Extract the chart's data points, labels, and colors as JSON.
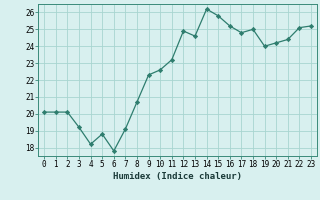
{
  "x": [
    0,
    1,
    2,
    3,
    4,
    5,
    6,
    7,
    8,
    9,
    10,
    11,
    12,
    13,
    14,
    15,
    16,
    17,
    18,
    19,
    20,
    21,
    22,
    23
  ],
  "y": [
    20.1,
    20.1,
    20.1,
    19.2,
    18.2,
    18.8,
    17.8,
    19.1,
    20.7,
    22.3,
    22.6,
    23.2,
    24.9,
    24.6,
    26.2,
    25.8,
    25.2,
    24.8,
    25.0,
    24.0,
    24.2,
    24.4,
    25.1,
    25.2
  ],
  "line_color": "#2e7d6e",
  "marker": "D",
  "marker_size": 2.2,
  "bg_color": "#d8f0ef",
  "grid_color": "#a8d5d0",
  "xlabel": "Humidex (Indice chaleur)",
  "ylim": [
    17.5,
    26.5
  ],
  "xlim": [
    -0.5,
    23.5
  ],
  "yticks": [
    18,
    19,
    20,
    21,
    22,
    23,
    24,
    25,
    26
  ],
  "xticks": [
    0,
    1,
    2,
    3,
    4,
    5,
    6,
    7,
    8,
    9,
    10,
    11,
    12,
    13,
    14,
    15,
    16,
    17,
    18,
    19,
    20,
    21,
    22,
    23
  ],
  "tick_fontsize": 5.5,
  "xlabel_fontsize": 6.5,
  "spine_color": "#3a8a7a",
  "line_width": 0.9
}
